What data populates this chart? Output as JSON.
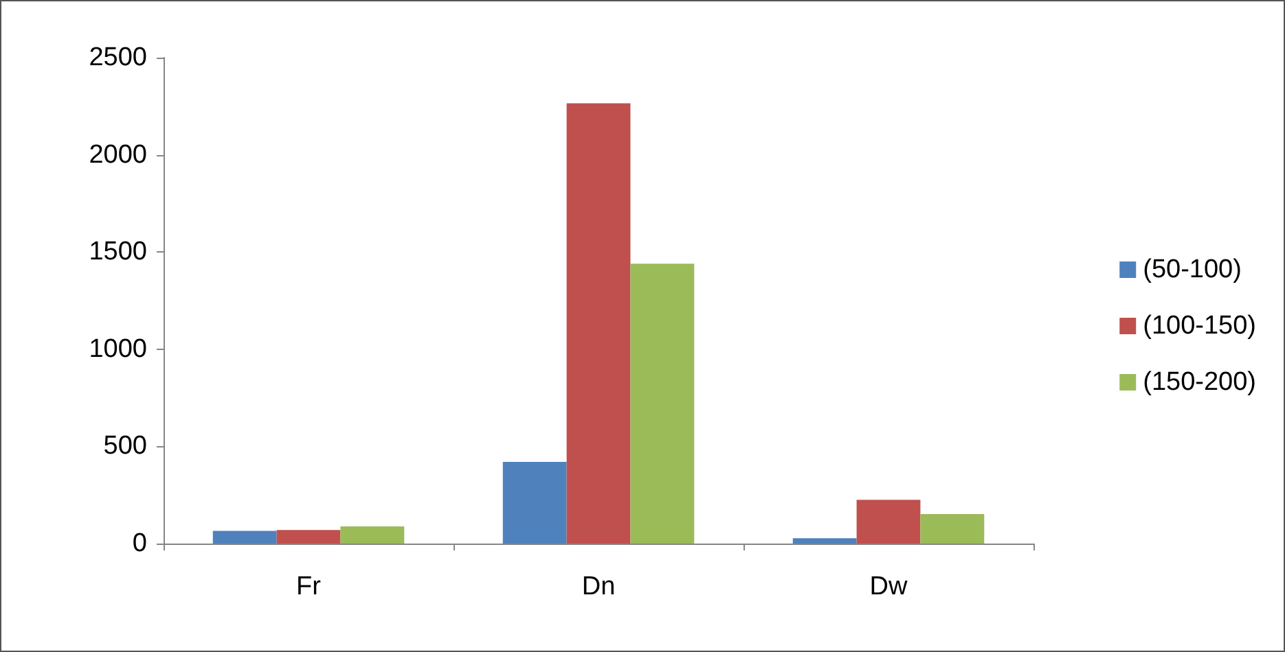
{
  "chart_data": {
    "type": "bar",
    "categories": [
      "Fr",
      "Dn",
      "Dw"
    ],
    "series": [
      {
        "name": "(50-100)",
        "color": "#4f81bd",
        "values": [
          65,
          420,
          27
        ]
      },
      {
        "name": "(100-150)",
        "color": "#c0504d",
        "values": [
          70,
          2265,
          225
        ]
      },
      {
        "name": "(150-200)",
        "color": "#9bbb59",
        "values": [
          88,
          1440,
          152
        ]
      }
    ],
    "ylim": [
      0,
      2500
    ],
    "yticks": [
      0,
      500,
      1000,
      1500,
      2000,
      2500
    ],
    "grid": false,
    "legend": "right"
  }
}
